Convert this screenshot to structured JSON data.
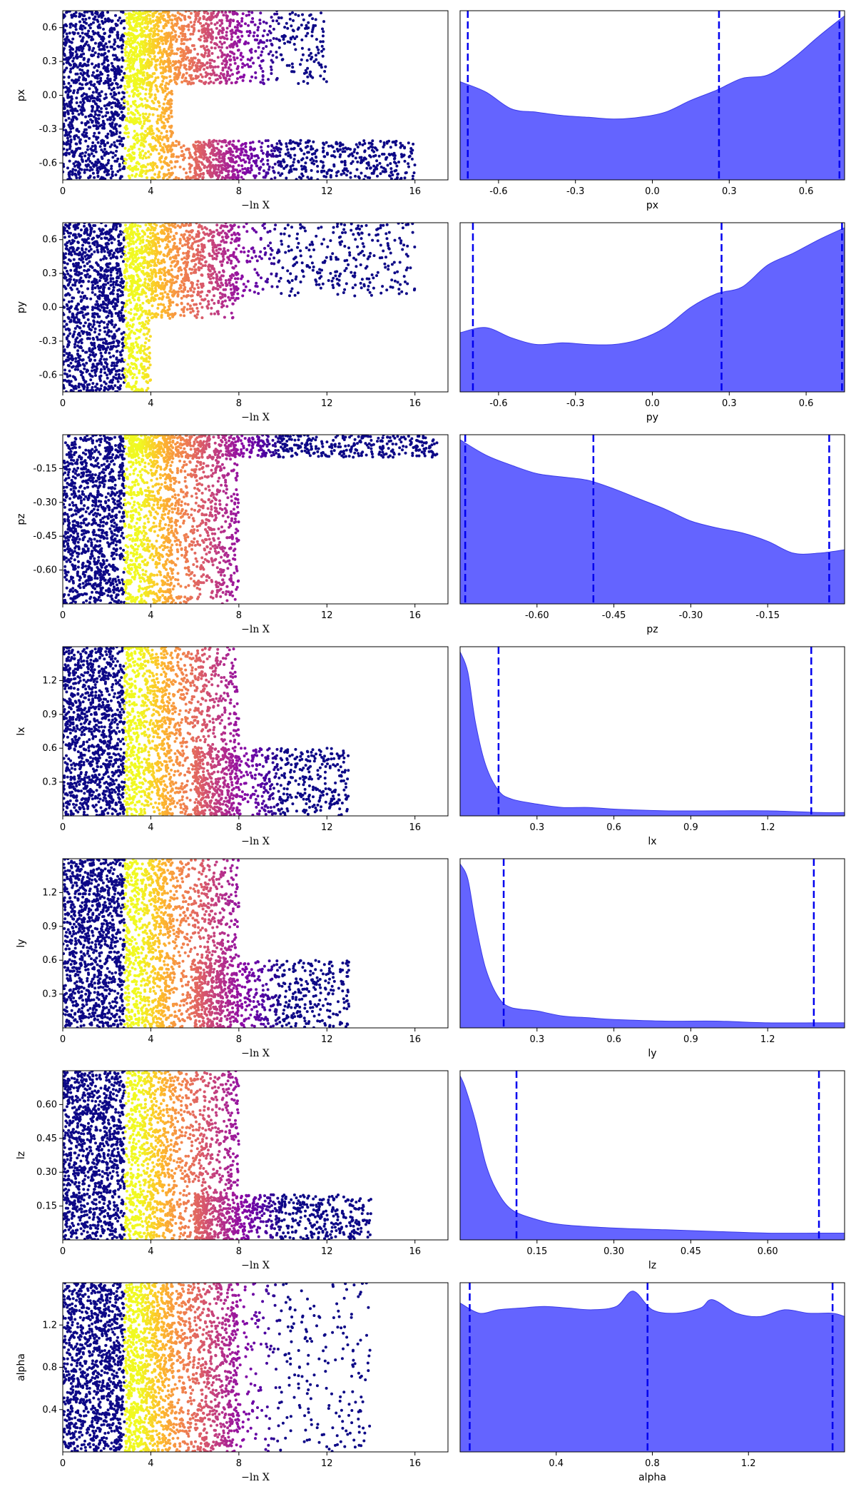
{
  "figure": {
    "x_label_left": "−ln X"
  },
  "colors": {
    "kde_fill": "#6464ff",
    "kde_line": "#3a3ae8",
    "quantile_line": "#0000ee",
    "colormap": [
      "#0d0887",
      "#5302a3",
      "#8b0aa5",
      "#b83289",
      "#db5c68",
      "#f48849",
      "#febd2a",
      "#f0f921"
    ]
  },
  "chart_data": [
    {
      "type": "scatter",
      "param": "px",
      "xlabel": "−ln X",
      "ylabel": "px",
      "xlim": [
        0,
        17.5
      ],
      "ylim": [
        -0.75,
        0.75
      ],
      "xticks": [
        "0",
        "4",
        "8",
        "12",
        "16"
      ],
      "yticks": [
        "-0.6",
        "-0.3",
        "0.0",
        "0.3",
        "0.6"
      ],
      "colormap": "plasma",
      "clusters": [
        {
          "x_range": [
            3,
            12
          ],
          "y_range": [
            0.1,
            0.75
          ]
        },
        {
          "x_range": [
            6,
            16
          ],
          "y_range": [
            -0.75,
            -0.4
          ]
        }
      ]
    },
    {
      "type": "area",
      "param": "px",
      "xlabel": "px",
      "xlim": [
        -0.75,
        0.75
      ],
      "xticks": [
        "-0.6",
        "-0.3",
        "0.0",
        "0.3",
        "0.6"
      ],
      "kde_x": [
        -0.75,
        -0.65,
        -0.55,
        -0.45,
        -0.35,
        -0.25,
        -0.15,
        -0.05,
        0.05,
        0.15,
        0.25,
        0.35,
        0.45,
        0.55,
        0.65,
        0.75
      ],
      "kde_y": [
        0.58,
        0.52,
        0.42,
        0.4,
        0.38,
        0.37,
        0.36,
        0.37,
        0.4,
        0.47,
        0.53,
        0.6,
        0.62,
        0.72,
        0.85,
        0.97
      ],
      "quantiles": [
        -0.72,
        0.26,
        0.73
      ]
    },
    {
      "type": "scatter",
      "param": "py",
      "xlabel": "−ln X",
      "ylabel": "py",
      "xlim": [
        0,
        17.5
      ],
      "ylim": [
        -0.75,
        0.75
      ],
      "xticks": [
        "0",
        "4",
        "8",
        "12",
        "16"
      ],
      "yticks": [
        "-0.6",
        "-0.3",
        "0.0",
        "0.3",
        "0.6"
      ],
      "colormap": "plasma",
      "clusters": [
        {
          "x_range": [
            3,
            16
          ],
          "y_range": [
            0.1,
            0.75
          ]
        }
      ]
    },
    {
      "type": "area",
      "param": "py",
      "xlabel": "py",
      "xlim": [
        -0.75,
        0.75
      ],
      "xticks": [
        "-0.6",
        "-0.3",
        "0.0",
        "0.3",
        "0.6"
      ],
      "kde_x": [
        -0.75,
        -0.65,
        -0.55,
        -0.45,
        -0.35,
        -0.25,
        -0.15,
        -0.05,
        0.05,
        0.15,
        0.25,
        0.35,
        0.45,
        0.55,
        0.65,
        0.75
      ],
      "kde_y": [
        0.35,
        0.38,
        0.32,
        0.28,
        0.29,
        0.28,
        0.28,
        0.31,
        0.38,
        0.5,
        0.58,
        0.62,
        0.75,
        0.82,
        0.9,
        0.97
      ],
      "quantiles": [
        -0.7,
        0.27,
        0.74
      ]
    },
    {
      "type": "scatter",
      "param": "pz",
      "xlabel": "−ln X",
      "ylabel": "pz",
      "xlim": [
        0,
        17.5
      ],
      "ylim": [
        -0.75,
        0.0
      ],
      "xticks": [
        "0",
        "4",
        "8",
        "12",
        "16"
      ],
      "yticks": [
        "-0.60",
        "-0.45",
        "-0.30",
        "-0.15"
      ],
      "colormap": "plasma",
      "clusters": [
        {
          "x_range": [
            3,
            17
          ],
          "y_range": [
            -0.1,
            0.0
          ]
        }
      ]
    },
    {
      "type": "area",
      "param": "pz",
      "xlabel": "pz",
      "xlim": [
        -0.75,
        0.0
      ],
      "xticks": [
        "-0.60",
        "-0.45",
        "-0.30",
        "-0.15"
      ],
      "kde_x": [
        -0.75,
        -0.7,
        -0.65,
        -0.6,
        -0.55,
        -0.5,
        -0.45,
        -0.4,
        -0.35,
        -0.3,
        -0.25,
        -0.2,
        -0.15,
        -0.1,
        -0.05,
        0.0
      ],
      "kde_y": [
        0.97,
        0.88,
        0.82,
        0.77,
        0.75,
        0.73,
        0.68,
        0.62,
        0.56,
        0.49,
        0.45,
        0.42,
        0.37,
        0.3,
        0.3,
        0.32
      ],
      "quantiles": [
        -0.74,
        -0.49,
        -0.03
      ]
    },
    {
      "type": "scatter",
      "param": "lx",
      "xlabel": "−ln X",
      "ylabel": "lx",
      "xlim": [
        0,
        17.5
      ],
      "ylim": [
        0.0,
        1.5
      ],
      "xticks": [
        "0",
        "4",
        "8",
        "12",
        "16"
      ],
      "yticks": [
        "0.3",
        "0.6",
        "0.9",
        "1.2"
      ],
      "colormap": "plasma",
      "clusters": [
        {
          "x_range": [
            6,
            13
          ],
          "y_range": [
            0.0,
            0.6
          ]
        }
      ]
    },
    {
      "type": "area",
      "param": "lx",
      "xlabel": "lx",
      "xlim": [
        0.0,
        1.5
      ],
      "xticks": [
        "0.3",
        "0.6",
        "0.9",
        "1.2"
      ],
      "kde_x": [
        0.0,
        0.03,
        0.06,
        0.1,
        0.15,
        0.2,
        0.3,
        0.4,
        0.5,
        0.6,
        0.8,
        1.0,
        1.2,
        1.4,
        1.5
      ],
      "kde_y": [
        0.97,
        0.85,
        0.55,
        0.3,
        0.15,
        0.1,
        0.07,
        0.05,
        0.05,
        0.04,
        0.03,
        0.03,
        0.03,
        0.02,
        0.02
      ],
      "quantiles": [
        0.15,
        1.37
      ]
    },
    {
      "type": "scatter",
      "param": "ly",
      "xlabel": "−ln X",
      "ylabel": "ly",
      "xlim": [
        0,
        17.5
      ],
      "ylim": [
        0.0,
        1.5
      ],
      "xticks": [
        "0",
        "4",
        "8",
        "12",
        "16"
      ],
      "yticks": [
        "0.3",
        "0.6",
        "0.9",
        "1.2"
      ],
      "colormap": "plasma",
      "clusters": [
        {
          "x_range": [
            6,
            13
          ],
          "y_range": [
            0.0,
            0.6
          ]
        }
      ]
    },
    {
      "type": "area",
      "param": "ly",
      "xlabel": "ly",
      "xlim": [
        0.0,
        1.5
      ],
      "xticks": [
        "0.3",
        "0.6",
        "0.9",
        "1.2"
      ],
      "kde_x": [
        0.0,
        0.03,
        0.06,
        0.1,
        0.15,
        0.2,
        0.3,
        0.4,
        0.5,
        0.6,
        0.8,
        1.0,
        1.2,
        1.4,
        1.5
      ],
      "kde_y": [
        0.97,
        0.88,
        0.62,
        0.35,
        0.18,
        0.12,
        0.1,
        0.07,
        0.06,
        0.05,
        0.04,
        0.04,
        0.03,
        0.03,
        0.03
      ],
      "quantiles": [
        0.17,
        1.38
      ]
    },
    {
      "type": "scatter",
      "param": "lz",
      "xlabel": "−ln X",
      "ylabel": "lz",
      "xlim": [
        0,
        17.5
      ],
      "ylim": [
        0.0,
        0.75
      ],
      "xticks": [
        "0",
        "4",
        "8",
        "12",
        "16"
      ],
      "yticks": [
        "0.15",
        "0.30",
        "0.45",
        "0.60"
      ],
      "colormap": "plasma",
      "clusters": [
        {
          "x_range": [
            6,
            14
          ],
          "y_range": [
            0.0,
            0.2
          ]
        }
      ]
    },
    {
      "type": "area",
      "param": "lz",
      "xlabel": "lz",
      "xlim": [
        0.0,
        0.75
      ],
      "xticks": [
        "0.15",
        "0.30",
        "0.45",
        "0.60"
      ],
      "kde_x": [
        0.0,
        0.01,
        0.03,
        0.05,
        0.07,
        0.1,
        0.15,
        0.2,
        0.3,
        0.4,
        0.5,
        0.6,
        0.7,
        0.75
      ],
      "kde_y": [
        0.97,
        0.9,
        0.7,
        0.45,
        0.3,
        0.18,
        0.12,
        0.09,
        0.07,
        0.06,
        0.05,
        0.04,
        0.04,
        0.04
      ],
      "quantiles": [
        0.11,
        0.7
      ]
    },
    {
      "type": "scatter",
      "param": "alpha",
      "xlabel": "−ln X",
      "ylabel": "alpha",
      "xlim": [
        0,
        17.5
      ],
      "ylim": [
        0.0,
        1.6
      ],
      "xticks": [
        "0",
        "4",
        "8",
        "12",
        "16"
      ],
      "yticks": [
        "0.4",
        "0.8",
        "1.2"
      ],
      "colormap": "plasma",
      "clusters": [
        {
          "x_range": [
            3,
            14
          ],
          "y_range": [
            0.0,
            1.6
          ]
        }
      ]
    },
    {
      "type": "area",
      "param": "alpha",
      "xlabel": "alpha",
      "xlim": [
        0.0,
        1.6
      ],
      "xticks": [
        "0.4",
        "0.8",
        "1.2"
      ],
      "kde_x": [
        0.0,
        0.08,
        0.16,
        0.25,
        0.35,
        0.45,
        0.55,
        0.65,
        0.72,
        0.8,
        0.9,
        1.0,
        1.05,
        1.15,
        1.25,
        1.35,
        1.45,
        1.55,
        1.6
      ],
      "kde_y": [
        0.88,
        0.82,
        0.84,
        0.85,
        0.86,
        0.85,
        0.84,
        0.86,
        0.95,
        0.84,
        0.82,
        0.85,
        0.9,
        0.82,
        0.8,
        0.84,
        0.82,
        0.82,
        0.8
      ],
      "quantiles": [
        0.04,
        0.78,
        1.55
      ]
    }
  ]
}
